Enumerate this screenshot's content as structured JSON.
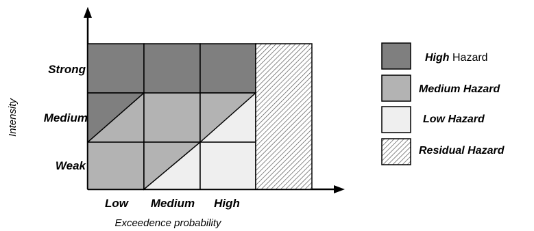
{
  "axes": {
    "y_label": "Intensity",
    "x_label": "Exceedence probability",
    "y_categories": [
      "Strong",
      "Medium",
      "Weak"
    ],
    "x_categories": [
      "Low",
      "Medium",
      "High"
    ]
  },
  "legend": {
    "high": {
      "bold": "High",
      "rest": " Hazard"
    },
    "medium": "Medium Hazard",
    "low": "Low Hazard",
    "residual": "Residual Hazard"
  },
  "colors": {
    "high": "#7f7f7f",
    "medium": "#b3b3b3",
    "low": "#efefef",
    "residual_hatch": "#555555",
    "outline": "#000000"
  }
}
